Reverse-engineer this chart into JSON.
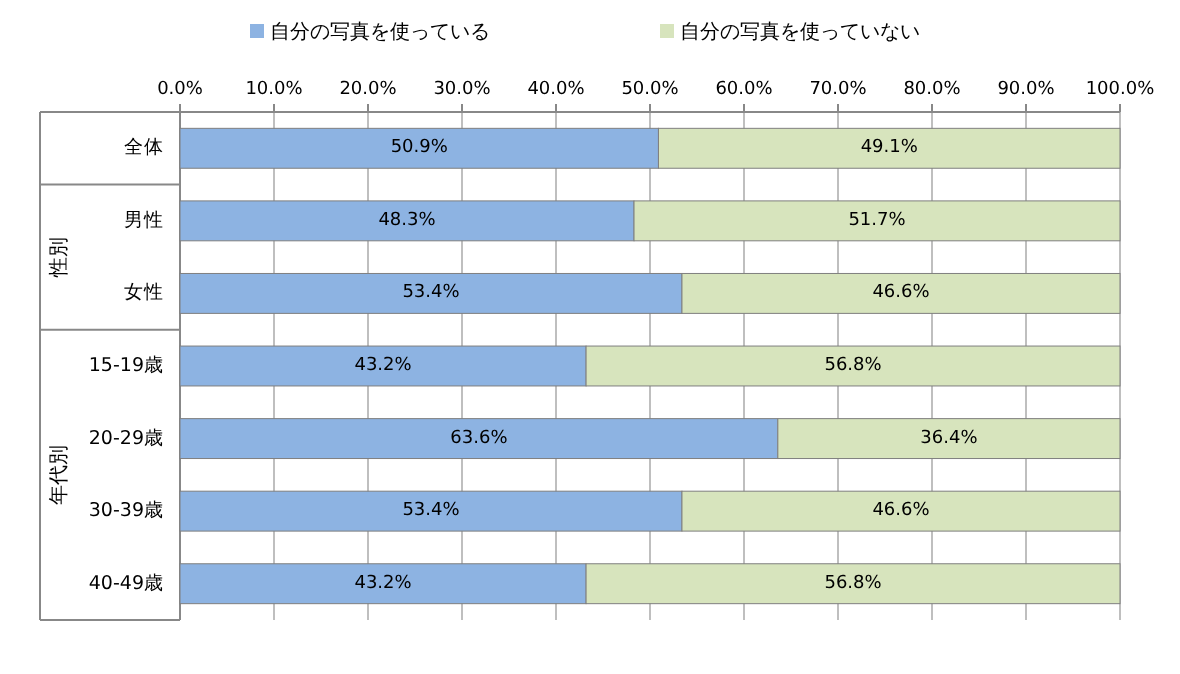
{
  "chart_data": {
    "type": "bar",
    "orientation": "horizontal",
    "stacked": true,
    "legend": "top",
    "grid": "x",
    "categories": [
      "全体",
      "男性",
      "女性",
      "15-19歳",
      "20-29歳",
      "30-39歳",
      "40-49歳"
    ],
    "series": [
      {
        "name": "自分の写真を使っている",
        "color": "#8db3e2",
        "values": [
          50.9,
          48.3,
          53.4,
          43.2,
          63.6,
          53.4,
          43.2
        ],
        "value_labels": [
          "50.9%",
          "48.3%",
          "53.4%",
          "43.2%",
          "63.6%",
          "53.4%",
          "43.2%"
        ]
      },
      {
        "name": "自分の写真を使っていない",
        "color": "#d7e4bd",
        "values": [
          49.1,
          51.7,
          46.6,
          56.8,
          36.4,
          46.6,
          56.8
        ],
        "value_labels": [
          "49.1%",
          "51.7%",
          "46.6%",
          "56.8%",
          "36.4%",
          "46.6%",
          "56.8%"
        ]
      }
    ],
    "xlim": [
      0,
      100
    ],
    "xticks": [
      {
        "value": 0,
        "label": "0.0%"
      },
      {
        "value": 10,
        "label": "10.0%"
      },
      {
        "value": 20,
        "label": "20.0%"
      },
      {
        "value": 30,
        "label": "30.0%"
      },
      {
        "value": 40,
        "label": "40.0%"
      },
      {
        "value": 50,
        "label": "50.0%"
      },
      {
        "value": 60,
        "label": "60.0%"
      },
      {
        "value": 70,
        "label": "70.0%"
      },
      {
        "value": 80,
        "label": "80.0%"
      },
      {
        "value": 90,
        "label": "90.0%"
      },
      {
        "value": 100,
        "label": "100.0%"
      }
    ],
    "annotations": [
      "性別",
      "年代別"
    ]
  }
}
